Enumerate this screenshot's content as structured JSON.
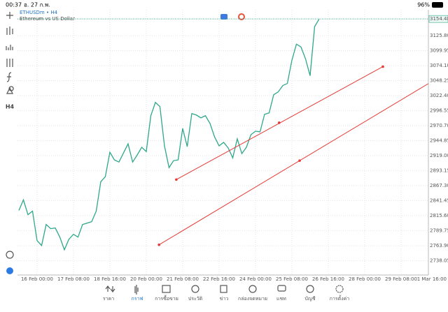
{
  "status_bar": {
    "time": "00:37",
    "date": "อ. 27 ก.พ.",
    "battery": "96%"
  },
  "toolbar": {
    "timeframe": "H4"
  },
  "chart_data": {
    "type": "line",
    "title": "ETHUSDm • H4",
    "subtitle": "Ethereum vs US Dollar",
    "color": "#2ea88a",
    "grid": true,
    "values": [
      2824.8,
      2842.9,
      2817.5,
      2823.6,
      2772.8,
      2764.4,
      2800.6,
      2793.4,
      2794.6,
      2778.9,
      2757.1,
      2775.2,
      2783.7,
      2778.9,
      2800.6,
      2803.0,
      2805.4,
      2823.6,
      2874.3,
      2882.8,
      2925.0,
      2911.8,
      2908.1,
      2923.8,
      2939.5,
      2908.1,
      2920.2,
      2933.5,
      2926.2,
      2987.9,
      3010.8,
      3003.6,
      2935.9,
      2898.5,
      2910.5,
      2911.8,
      2966.1,
      2934.7,
      2991.5,
      2989.1,
      2984.2,
      2987.9,
      2974.6,
      2951.6,
      2935.9,
      2942.0,
      2932.3,
      2915.4,
      2948.0,
      2922.6,
      2933.5,
      2955.2,
      2961.3,
      2960.1,
      2990.3,
      2992.7,
      3024.1,
      3028.9,
      3039.8,
      3043.4,
      3083.3,
      3111.1,
      3106.2,
      3085.7,
      3056.7,
      3141.3,
      3154.48
    ],
    "xlim": [
      -0.3,
      90
    ],
    "xticks": [
      {
        "value": 4,
        "label": "16 Feb 00:00"
      },
      {
        "value": 12,
        "label": "17 Feb 08:00"
      },
      {
        "value": 20,
        "label": "18 Feb 16:00"
      },
      {
        "value": 28,
        "label": "20 Feb 00:00"
      },
      {
        "value": 36,
        "label": "21 Feb 08:00"
      },
      {
        "value": 44,
        "label": "22 Feb 16:00"
      },
      {
        "value": 52,
        "label": "24 Feb 00:00"
      },
      {
        "value": 60,
        "label": "25 Feb 08:00"
      },
      {
        "value": 68,
        "label": "26 Feb 16:00"
      },
      {
        "value": 76,
        "label": "28 Feb 00:00"
      },
      {
        "value": 84,
        "label": "29 Feb 08:00"
      },
      {
        "value": 92,
        "label": "1 Mar 16:00"
      }
    ],
    "ylim": [
      2713.6,
      3170.3
    ],
    "yticks": [
      {
        "value": 3125.8,
        "label": "3125.80"
      },
      3099.95,
      {
        "value": 3074.1,
        "label": "3074.10"
      },
      3048.25,
      {
        "value": 3022.4,
        "label": "3022.40"
      },
      2996.55,
      {
        "value": 2970.7,
        "label": "2970.70"
      },
      2944.85,
      {
        "value": 2919,
        "label": "2919.00"
      },
      2893.15,
      {
        "value": 2867.3,
        "label": "2867.30"
      },
      2841.45,
      {
        "value": 2815.6,
        "label": "2815.60"
      },
      2789.75,
      {
        "value": 2763.9,
        "label": "2763.90"
      },
      2738.05
    ],
    "current_price": 3154.48,
    "trendlines": [
      {
        "color": "#e53935",
        "points": [
          [
            34.6,
            2877.9
          ],
          [
            57.2,
            2975.8
          ],
          [
            80,
            3072.4
          ]
        ]
      },
      {
        "color": "#e53935",
        "extend": true,
        "points": [
          [
            30.8,
            2765.6
          ],
          [
            61.7,
            2910.5
          ]
        ]
      }
    ]
  },
  "tab_bar": {
    "tabs": [
      {
        "label": "ราคา"
      },
      {
        "label": "กราฟ",
        "active": true
      },
      {
        "label": "การซื้อขาย"
      },
      {
        "label": "ประวัติ"
      },
      {
        "label": "ข่าว"
      },
      {
        "label": "กล่องจดหมาย"
      },
      {
        "label": "แชท"
      },
      {
        "label": "บัญชี"
      },
      {
        "label": "การตั้งค่า"
      }
    ]
  }
}
